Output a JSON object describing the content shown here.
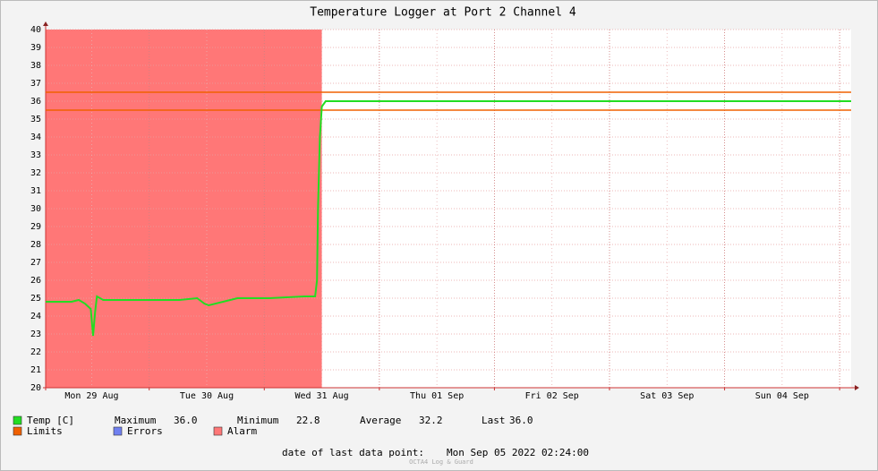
{
  "chart_data": {
    "type": "line",
    "title": "Temperature Logger at Port 2 Channel 4",
    "xlim": [
      2.4,
      170.4
    ],
    "xticks": [
      {
        "value": 12,
        "label": "Mon 29 Aug"
      },
      {
        "value": 36,
        "label": "Tue 30 Aug"
      },
      {
        "value": 60,
        "label": "Wed 31 Aug"
      },
      {
        "value": 84,
        "label": "Thu 01 Sep"
      },
      {
        "value": 108,
        "label": "Fri 02 Sep"
      },
      {
        "value": 132,
        "label": "Sat 03 Sep"
      },
      {
        "value": 156,
        "label": "Sun 04 Sep"
      }
    ],
    "xgrid": [
      24,
      48,
      72,
      96,
      120,
      144,
      168
    ],
    "ylim": [
      20,
      40
    ],
    "yticks": [
      20,
      21,
      22,
      23,
      24,
      25,
      26,
      27,
      28,
      29,
      30,
      31,
      32,
      33,
      34,
      35,
      36,
      37,
      38,
      39,
      40
    ],
    "grid": true,
    "series": [
      {
        "name": "Temp [C]",
        "color": "#22dd22",
        "x": [
          2.4,
          7.8,
          9.3,
          10.6,
          11.8,
          12.3,
          12.7,
          13.1,
          14.4,
          19.1,
          30.3,
          34.0,
          35.5,
          36.4,
          42.4,
          49.0,
          56.4,
          58.6,
          59.0,
          59.2,
          59.6,
          60.0,
          60.8,
          100,
          140,
          170.4
        ],
        "values": [
          24.8,
          24.8,
          24.9,
          24.7,
          24.4,
          22.9,
          24.2,
          25.1,
          24.9,
          24.9,
          24.9,
          25.0,
          24.7,
          24.6,
          25.0,
          25.0,
          25.1,
          25.1,
          26.0,
          30.0,
          34.0,
          35.7,
          36.0,
          36.0,
          36.0,
          36.0
        ]
      }
    ],
    "limits": {
      "name": "Limits",
      "color": "#f06000",
      "values": [
        36.5,
        35.5
      ]
    },
    "errors": {
      "name": "Errors",
      "color": "#7080f0"
    },
    "alarm": {
      "name": "Alarm",
      "color": "#ff7777",
      "x": [
        2.4,
        60.0
      ]
    },
    "stats": [
      {
        "label": "Maximum",
        "value": "36.0"
      },
      {
        "label": "Minimum",
        "value": "22.8"
      },
      {
        "label": "Average",
        "value": "32.2"
      },
      {
        "label": "Last",
        "value": "36.0"
      }
    ],
    "footer": {
      "label": "date of last data point:",
      "value": "Mon Sep 05 2022 02:24:00"
    },
    "watermark": "OCTA4 Log & Guard"
  }
}
